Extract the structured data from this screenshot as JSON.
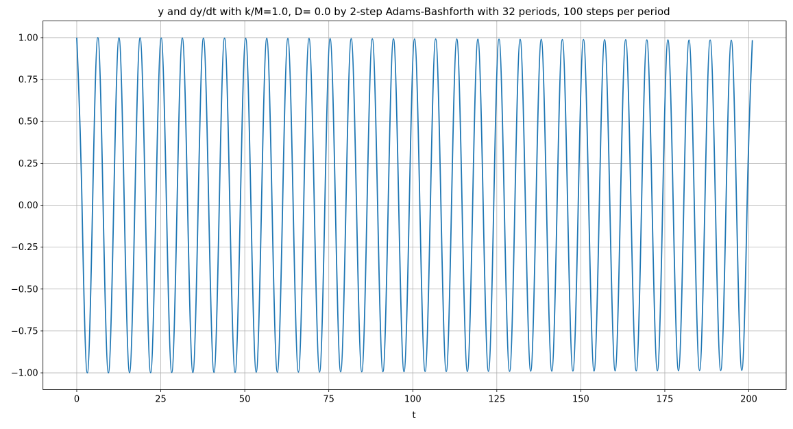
{
  "chart_data": {
    "type": "line",
    "title": "y and dy/dt with k/M=1.0, D= 0.0 by 2-step Adams-Bashforth with 32 periods, 100 steps per period",
    "xlabel": "t",
    "color": "#1f77b4",
    "grid": true,
    "xlim": [
      -10.05,
      211.11
    ],
    "ylim": [
      -1.1,
      1.1
    ],
    "xticks": [
      0,
      25,
      50,
      75,
      100,
      125,
      150,
      175,
      200
    ],
    "yticks": [
      {
        "value": -1,
        "label": "−1.00"
      },
      {
        "value": -0.75,
        "label": "−0.75"
      },
      {
        "value": -0.5,
        "label": "−0.50"
      },
      {
        "value": -0.25,
        "label": "−0.25"
      },
      {
        "value": 0,
        "label": "0.00"
      },
      {
        "value": 0.25,
        "label": "0.25"
      },
      {
        "value": 0.5,
        "label": "0.50"
      },
      {
        "value": 0.75,
        "label": "0.75"
      },
      {
        "value": 1,
        "label": "1.00"
      }
    ],
    "x": [
      0,
      1.57,
      3.14,
      4.71,
      6.28,
      7.85,
      9.42,
      11.0,
      12.57,
      14.14,
      15.71,
      17.28,
      18.85,
      20.42,
      21.99,
      23.56,
      25.13,
      26.7,
      28.27,
      29.85,
      31.42,
      32.99,
      34.56,
      36.13,
      37.7,
      39.27,
      40.84,
      42.41,
      43.98,
      45.55,
      47.12,
      48.69,
      50.27,
      51.84,
      53.41,
      54.98,
      56.55,
      58.12,
      59.69,
      61.26,
      62.83,
      64.4,
      65.97,
      67.54,
      69.12,
      70.69,
      72.26,
      73.83,
      75.4,
      76.97,
      78.54,
      80.11,
      81.68,
      83.25,
      84.82,
      86.39,
      87.96,
      89.54,
      91.11,
      92.68,
      94.25,
      95.82,
      97.39,
      98.96,
      100.53,
      102.1,
      103.67,
      105.24,
      106.81,
      108.38,
      109.96,
      111.53,
      113.1,
      114.67,
      116.24,
      117.81,
      119.38,
      120.95,
      122.52,
      124.09,
      125.66,
      127.23,
      128.81,
      130.38,
      131.95,
      133.52,
      135.09,
      136.66,
      138.23,
      139.8,
      141.37,
      142.94,
      144.51,
      146.08,
      147.65,
      149.23,
      150.8,
      152.37,
      153.94,
      155.51,
      157.08,
      158.65,
      160.22,
      161.79,
      163.36,
      164.93,
      166.5,
      168.08,
      169.65,
      171.22,
      172.79,
      174.36,
      175.93,
      177.5,
      179.07,
      180.64,
      182.21,
      183.78,
      185.35,
      186.92,
      188.5,
      190.07,
      191.64,
      193.21,
      194.78,
      196.35,
      197.92,
      199.49,
      201.06
    ],
    "values": [
      1,
      0,
      -1,
      0,
      1,
      0,
      -1,
      0,
      0.999,
      0,
      -0.999,
      0,
      0.999,
      0,
      -0.999,
      0,
      0.998,
      0,
      -0.998,
      0,
      0.998,
      0,
      -0.998,
      0,
      0.997,
      0,
      -0.997,
      0,
      0.997,
      0,
      -0.997,
      0,
      0.996,
      0,
      -0.996,
      0,
      0.996,
      0,
      -0.996,
      0,
      0.995,
      0,
      -0.995,
      0,
      0.995,
      0,
      -0.995,
      0,
      0.994,
      0,
      -0.994,
      0,
      0.994,
      0,
      -0.994,
      0,
      0.993,
      0,
      -0.993,
      0,
      0.993,
      0,
      -0.993,
      0,
      0.992,
      0,
      -0.992,
      0,
      0.992,
      0,
      -0.992,
      0,
      0.992,
      0,
      -0.992,
      0,
      0.991,
      0,
      -0.991,
      0,
      0.991,
      0,
      -0.991,
      0,
      0.99,
      0,
      -0.99,
      0,
      0.99,
      0,
      -0.99,
      0,
      0.989,
      0,
      -0.989,
      0,
      0.989,
      0,
      -0.989,
      0,
      0.988,
      0,
      -0.988,
      0,
      0.988,
      0,
      -0.988,
      0,
      0.987,
      0,
      -0.987,
      0,
      0.987,
      0,
      -0.987,
      0,
      0.986,
      0,
      -0.986,
      0,
      0.986,
      0,
      -0.986,
      0,
      0.985,
      0,
      -0.985,
      0,
      0.985
    ]
  }
}
